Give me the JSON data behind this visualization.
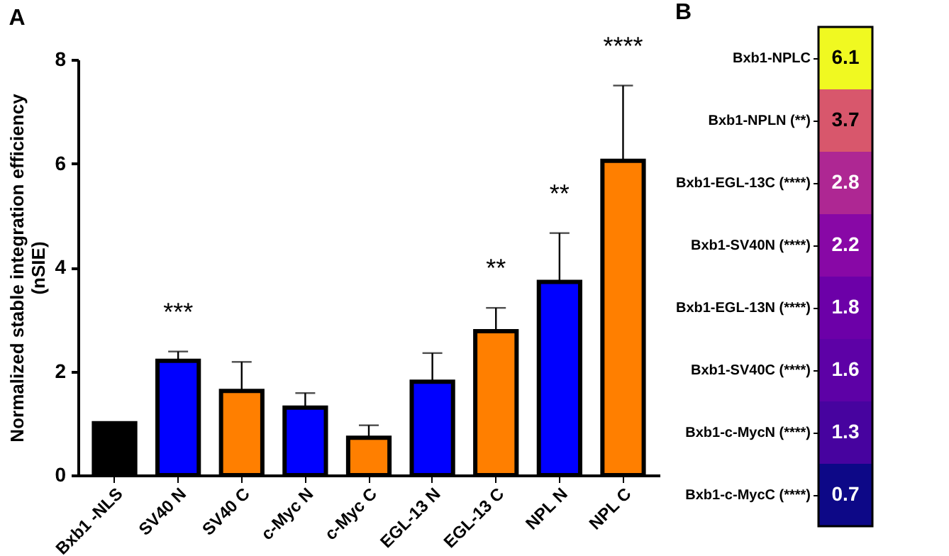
{
  "chart_data": [
    {
      "type": "bar",
      "title": "A",
      "ylabel": "Normalized stable integration efficiency\n(nSIE)",
      "categories": [
        "Bxb1 -NLS",
        "SV40 N",
        "SV40 C",
        "c-Myc N",
        "c-Myc C",
        "EGL-13 N",
        "EGL-13 C",
        "NPL N",
        "NPL C"
      ],
      "values": [
        1.0,
        2.2,
        1.62,
        1.3,
        0.72,
        1.8,
        2.77,
        3.72,
        6.05
      ],
      "colors": [
        "#000000",
        "#0000ff",
        "#ff7f00",
        "#0000ff",
        "#ff7f00",
        "#0000ff",
        "#ff7f00",
        "#0000ff",
        "#ff7f00"
      ],
      "errors": [
        null,
        [
          2.2,
          2.38
        ],
        [
          1.62,
          2.18
        ],
        [
          1.3,
          1.58
        ],
        [
          0.72,
          0.96
        ],
        [
          1.8,
          2.35
        ],
        [
          2.77,
          3.22
        ],
        [
          3.72,
          4.66
        ],
        [
          6.05,
          7.5
        ]
      ],
      "ylim": [
        0,
        8
      ],
      "yticks": [
        0,
        2,
        4,
        6,
        8
      ],
      "grid": false,
      "annotations": [
        {
          "text": "***",
          "x": "SV40 N",
          "y": 2.38
        },
        {
          "text": "**",
          "x": "EGL-13 C",
          "y": 3.22
        },
        {
          "text": "**",
          "x": "NPL N",
          "y": 4.66
        },
        {
          "text": "****",
          "x": "NPL C",
          "y": 7.5
        }
      ]
    },
    {
      "type": "heatmap",
      "title": "B",
      "categories": [
        null
      ],
      "y_categories": [
        "Bxb1-NPLC",
        "Bxb1-NPLN (**)",
        "Bxb1-EGL-13C (****)",
        "Bxb1-SV40N (****)",
        "Bxb1-EGL-13N (****)",
        "Bxb1-SV40C (****)",
        "Bxb1-c-MycN (****)",
        "Bxb1-c-MycC (****)"
      ],
      "cells": [
        [
          6.1
        ],
        [
          3.7
        ],
        [
          2.8
        ],
        [
          2.2
        ],
        [
          1.8
        ],
        [
          1.6
        ],
        [
          1.3
        ],
        [
          0.7
        ]
      ],
      "data_labels": true
    }
  ]
}
